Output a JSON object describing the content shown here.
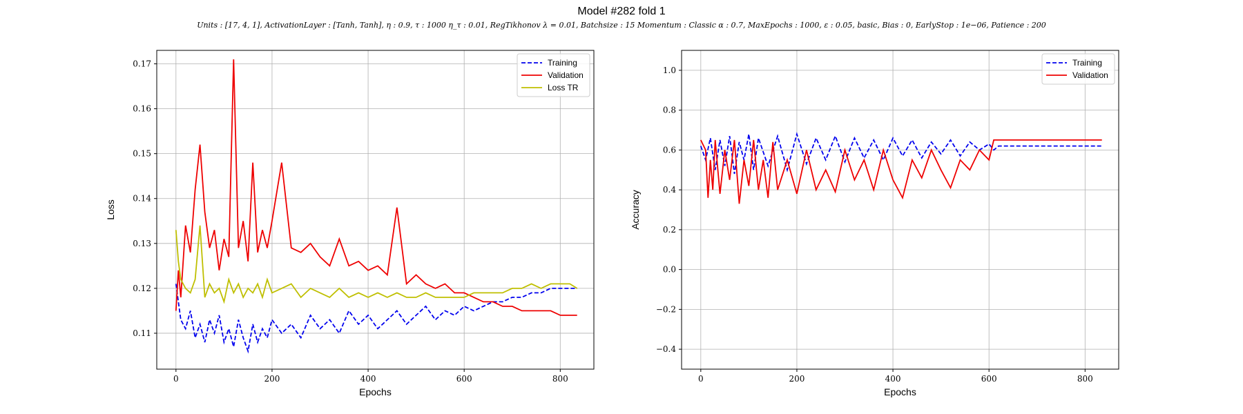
{
  "figure": {
    "title": "Model #282 fold 1",
    "subtitle": "Units : [17, 4, 1], ActivationLayer : [Tanh, Tanh], η : 0.9, τ : 1000 η_τ : 0.01, RegTikhonov λ = 0.01, Batchsize : 15 Momentum : Classic α : 0.7, MaxEpochs : 1000, ε : 0.05, basic, Bias : 0, EarlyStop : 1e−06, Patience : 200"
  },
  "chart_data": [
    {
      "type": "line",
      "xlabel": "Epochs",
      "ylabel": "Loss",
      "xlim": [
        -40,
        870
      ],
      "ylim": [
        0.102,
        0.173
      ],
      "xticks": [
        0,
        200,
        400,
        600,
        800
      ],
      "xtick_labels": [
        "0",
        "200",
        "400",
        "600",
        "800"
      ],
      "yticks": [
        0.11,
        0.12,
        0.13,
        0.14,
        0.15,
        0.16,
        0.17
      ],
      "ytick_labels": [
        "0.11",
        "0.12",
        "0.13",
        "0.14",
        "0.15",
        "0.16",
        "0.17"
      ],
      "grid": true,
      "legend_position": "top-right",
      "series": [
        {
          "name": "Training",
          "color": "#0000ee",
          "dash": true,
          "x": [
            0,
            5,
            10,
            20,
            30,
            40,
            50,
            60,
            70,
            80,
            90,
            100,
            110,
            120,
            130,
            140,
            150,
            160,
            170,
            180,
            190,
            200,
            220,
            240,
            260,
            280,
            300,
            320,
            340,
            360,
            380,
            400,
            420,
            440,
            460,
            480,
            500,
            520,
            540,
            560,
            580,
            600,
            620,
            640,
            660,
            680,
            700,
            720,
            740,
            760,
            780,
            800,
            820,
            835
          ],
          "y": [
            0.121,
            0.117,
            0.113,
            0.111,
            0.115,
            0.109,
            0.112,
            0.108,
            0.113,
            0.11,
            0.114,
            0.108,
            0.111,
            0.107,
            0.113,
            0.109,
            0.106,
            0.112,
            0.108,
            0.111,
            0.109,
            0.113,
            0.11,
            0.112,
            0.109,
            0.114,
            0.111,
            0.113,
            0.11,
            0.115,
            0.112,
            0.114,
            0.111,
            0.113,
            0.115,
            0.112,
            0.114,
            0.116,
            0.113,
            0.115,
            0.114,
            0.116,
            0.115,
            0.116,
            0.117,
            0.117,
            0.118,
            0.118,
            0.119,
            0.119,
            0.12,
            0.12,
            0.12,
            0.12
          ]
        },
        {
          "name": "Validation",
          "color": "#ee0000",
          "dash": false,
          "x": [
            0,
            5,
            10,
            20,
            30,
            40,
            50,
            60,
            70,
            80,
            90,
            100,
            110,
            120,
            130,
            140,
            150,
            160,
            170,
            180,
            190,
            200,
            220,
            240,
            260,
            280,
            300,
            320,
            340,
            360,
            380,
            400,
            420,
            440,
            460,
            480,
            500,
            520,
            540,
            560,
            580,
            600,
            620,
            640,
            660,
            680,
            700,
            720,
            740,
            760,
            780,
            800,
            820,
            835
          ],
          "y": [
            0.115,
            0.124,
            0.118,
            0.134,
            0.128,
            0.142,
            0.152,
            0.137,
            0.129,
            0.133,
            0.124,
            0.131,
            0.127,
            0.171,
            0.129,
            0.135,
            0.126,
            0.148,
            0.128,
            0.133,
            0.129,
            0.135,
            0.148,
            0.129,
            0.128,
            0.13,
            0.127,
            0.125,
            0.131,
            0.125,
            0.126,
            0.124,
            0.125,
            0.123,
            0.138,
            0.121,
            0.123,
            0.121,
            0.12,
            0.121,
            0.119,
            0.119,
            0.118,
            0.117,
            0.117,
            0.116,
            0.116,
            0.115,
            0.115,
            0.115,
            0.115,
            0.114,
            0.114,
            0.114
          ]
        },
        {
          "name": "Loss TR",
          "color": "#bfbf00",
          "dash": false,
          "x": [
            0,
            5,
            10,
            20,
            30,
            40,
            50,
            60,
            70,
            80,
            90,
            100,
            110,
            120,
            130,
            140,
            150,
            160,
            170,
            180,
            190,
            200,
            220,
            240,
            260,
            280,
            300,
            320,
            340,
            360,
            380,
            400,
            420,
            440,
            460,
            480,
            500,
            520,
            540,
            560,
            580,
            600,
            620,
            640,
            660,
            680,
            700,
            720,
            740,
            760,
            780,
            800,
            820,
            835
          ],
          "y": [
            0.133,
            0.126,
            0.122,
            0.12,
            0.119,
            0.122,
            0.134,
            0.118,
            0.121,
            0.119,
            0.12,
            0.117,
            0.122,
            0.119,
            0.121,
            0.118,
            0.12,
            0.119,
            0.121,
            0.118,
            0.122,
            0.119,
            0.12,
            0.121,
            0.118,
            0.12,
            0.119,
            0.118,
            0.12,
            0.118,
            0.119,
            0.118,
            0.119,
            0.118,
            0.119,
            0.118,
            0.118,
            0.119,
            0.118,
            0.118,
            0.118,
            0.118,
            0.119,
            0.119,
            0.119,
            0.119,
            0.12,
            0.12,
            0.121,
            0.12,
            0.121,
            0.121,
            0.121,
            0.12
          ]
        }
      ]
    },
    {
      "type": "line",
      "xlabel": "Epochs",
      "ylabel": "Accuracy",
      "xlim": [
        -40,
        870
      ],
      "ylim": [
        -0.5,
        1.1
      ],
      "xticks": [
        0,
        200,
        400,
        600,
        800
      ],
      "xtick_labels": [
        "0",
        "200",
        "400",
        "600",
        "800"
      ],
      "yticks": [
        -0.4,
        -0.2,
        0.0,
        0.2,
        0.4,
        0.6,
        0.8,
        1.0
      ],
      "ytick_labels": [
        "−0.4",
        "−0.2",
        "0.0",
        "0.2",
        "0.4",
        "0.6",
        "0.8",
        "1.0"
      ],
      "grid": true,
      "legend_position": "top-right",
      "series": [
        {
          "name": "Training",
          "color": "#0000ee",
          "dash": true,
          "x": [
            0,
            10,
            20,
            30,
            40,
            50,
            60,
            70,
            80,
            90,
            100,
            110,
            120,
            140,
            160,
            180,
            200,
            220,
            240,
            260,
            280,
            300,
            320,
            340,
            360,
            380,
            400,
            420,
            440,
            460,
            480,
            500,
            520,
            540,
            560,
            580,
            600,
            610,
            620,
            700,
            835
          ],
          "y": [
            0.62,
            0.55,
            0.66,
            0.5,
            0.65,
            0.52,
            0.67,
            0.48,
            0.64,
            0.55,
            0.68,
            0.5,
            0.66,
            0.52,
            0.67,
            0.5,
            0.68,
            0.53,
            0.66,
            0.55,
            0.67,
            0.54,
            0.66,
            0.56,
            0.65,
            0.55,
            0.66,
            0.57,
            0.65,
            0.56,
            0.64,
            0.58,
            0.65,
            0.57,
            0.64,
            0.6,
            0.63,
            0.6,
            0.62,
            0.62,
            0.62
          ]
        },
        {
          "name": "Validation",
          "color": "#ee0000",
          "dash": false,
          "x": [
            0,
            10,
            15,
            20,
            25,
            30,
            40,
            50,
            60,
            70,
            80,
            90,
            100,
            110,
            120,
            130,
            140,
            150,
            160,
            180,
            200,
            220,
            240,
            260,
            280,
            300,
            320,
            340,
            360,
            380,
            400,
            420,
            440,
            460,
            480,
            500,
            520,
            540,
            560,
            580,
            600,
            610,
            620,
            700,
            835
          ],
          "y": [
            0.65,
            0.6,
            0.36,
            0.55,
            0.4,
            0.65,
            0.38,
            0.6,
            0.45,
            0.65,
            0.33,
            0.55,
            0.42,
            0.65,
            0.4,
            0.55,
            0.36,
            0.64,
            0.4,
            0.55,
            0.38,
            0.6,
            0.4,
            0.5,
            0.39,
            0.6,
            0.45,
            0.55,
            0.4,
            0.6,
            0.45,
            0.36,
            0.55,
            0.46,
            0.6,
            0.5,
            0.41,
            0.55,
            0.5,
            0.6,
            0.55,
            0.65,
            0.65,
            0.65,
            0.65
          ]
        }
      ]
    }
  ]
}
